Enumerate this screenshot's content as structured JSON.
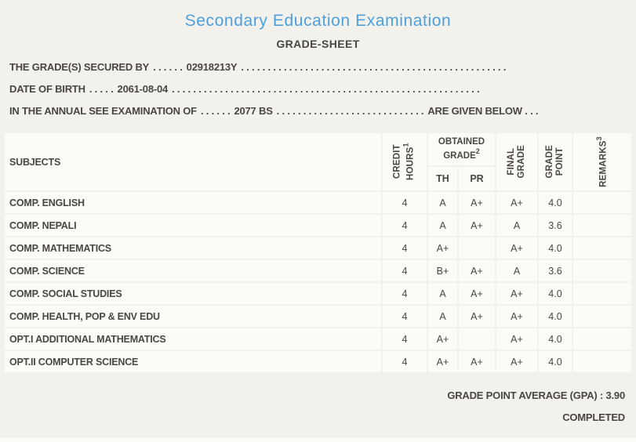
{
  "header": {
    "title": "Secondary Education Examination",
    "subtitle": "GRADE-SHEET"
  },
  "info_lines": [
    {
      "label": "THE GRADE(S) SECURED BY",
      "dots_before": ". . . . . .",
      "value": "02918213Y",
      "dots_after": ". . . . . . . . . . . . . . . . . . . . . . . . . . . . . . . . . . . . . . . . . . . . . . . . . ."
    },
    {
      "label": "DATE OF BIRTH",
      "dots_before": ". . . . .",
      "value": "2061-08-04",
      "dots_after": ". . . . . . . . . . . . . . . . . . . . . . . . . . . . . . . . . . . . . . . . . . . . . . . . . . . . . . . . . ."
    },
    {
      "label": "IN THE ANNUAL SEE EXAMINATION OF",
      "dots_before": ". . . . . .",
      "value": "2077 BS",
      "dots_after": ". . . . . . . . . . . . . . . . . . . . . . . . . . . .",
      "suffix": "ARE GIVEN BELOW . . ."
    }
  ],
  "table": {
    "headers": {
      "subjects": "SUBJECTS",
      "credit_hours": {
        "line1": "CREDIT",
        "line2": "HOURS",
        "sup": "1"
      },
      "obtained_grade": {
        "line1": "OBTAINED",
        "line2": "GRADE",
        "sup": "2"
      },
      "th": "TH",
      "pr": "PR",
      "final_grade": {
        "line1": "FINAL",
        "line2": "GRADE"
      },
      "grade_point": {
        "line1": "GRADE",
        "line2": "POINT"
      },
      "remarks": {
        "line1": "REMARKS",
        "sup": "3"
      }
    },
    "rows": [
      {
        "subject": "COMP. ENGLISH",
        "credit_hours": "4",
        "th": "A",
        "pr": "A+",
        "final_grade": "A+",
        "grade_point": "4.0",
        "remarks": ""
      },
      {
        "subject": "COMP. NEPALI",
        "credit_hours": "4",
        "th": "A",
        "pr": "A+",
        "final_grade": "A",
        "grade_point": "3.6",
        "remarks": ""
      },
      {
        "subject": "COMP. MATHEMATICS",
        "credit_hours": "4",
        "th": "A+",
        "pr": "",
        "final_grade": "A+",
        "grade_point": "4.0",
        "remarks": ""
      },
      {
        "subject": "COMP. SCIENCE",
        "credit_hours": "4",
        "th": "B+",
        "pr": "A+",
        "final_grade": "A",
        "grade_point": "3.6",
        "remarks": ""
      },
      {
        "subject": "COMP. SOCIAL STUDIES",
        "credit_hours": "4",
        "th": "A",
        "pr": "A+",
        "final_grade": "A+",
        "grade_point": "4.0",
        "remarks": ""
      },
      {
        "subject": "COMP. HEALTH, POP & ENV EDU",
        "credit_hours": "4",
        "th": "A",
        "pr": "A+",
        "final_grade": "A+",
        "grade_point": "4.0",
        "remarks": ""
      },
      {
        "subject": "OPT.I ADDITIONAL MATHEMATICS",
        "credit_hours": "4",
        "th": "A+",
        "pr": "",
        "final_grade": "A+",
        "grade_point": "4.0",
        "remarks": ""
      },
      {
        "subject": "OPT.II COMPUTER SCIENCE",
        "credit_hours": "4",
        "th": "A+",
        "pr": "A+",
        "final_grade": "A+",
        "grade_point": "4.0",
        "remarks": ""
      }
    ]
  },
  "footer": {
    "gpa_label": "GRADE POINT AVERAGE (GPA) : 3.90",
    "status": "COMPLETED"
  },
  "colors": {
    "page_bg": "#f2f1ec",
    "cell_bg": "#fbfbf8",
    "text": "#4a4641",
    "title_blue": "#4da0e0"
  }
}
